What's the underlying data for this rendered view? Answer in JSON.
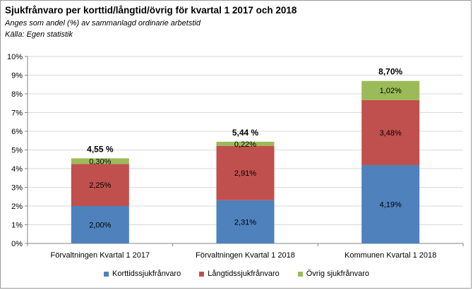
{
  "chart_data": {
    "type": "bar",
    "stacked": true,
    "title": "Sjukfrånvaro per korttid/långtid/övrig för kvartal 1 2017 och 2018",
    "subtitle_lines": [
      "Anges som andel (%) av sammanlagd ordinarie arbetstid",
      "Källa: Egen statistik"
    ],
    "categories": [
      "Förvaltningen Kvartal 1 2017",
      "Förvaltningen Kvartal 1 2018",
      "Kommunen Kvartal 1 2018"
    ],
    "series": [
      {
        "name": "Korttidssjukfrånvaro",
        "color": "#4f81bd",
        "values": [
          2.0,
          2.31,
          4.19
        ],
        "labels": [
          "2,00%",
          "2,31%",
          "4,19%"
        ]
      },
      {
        "name": "Långtidssjukfrånvaro",
        "color": "#c0504d",
        "values": [
          2.25,
          2.91,
          3.48
        ],
        "labels": [
          "2,25%",
          "2,91%",
          "3,48%"
        ]
      },
      {
        "name": "Övrig sjukfrånvaro",
        "color": "#9bbb59",
        "values": [
          0.3,
          0.22,
          1.02
        ],
        "labels": [
          "0,30%",
          "0,22%",
          "1,02%"
        ]
      }
    ],
    "totals": {
      "values": [
        4.55,
        5.44,
        8.7
      ],
      "labels": [
        "4,55 %",
        "5,44 %",
        "8,70%"
      ]
    },
    "yticks": [
      "0%",
      "1%",
      "2%",
      "3%",
      "4%",
      "5%",
      "6%",
      "7%",
      "8%",
      "9%",
      "10%"
    ],
    "ylim": [
      0,
      10
    ],
    "grid": true,
    "legend_position": "bottom"
  }
}
